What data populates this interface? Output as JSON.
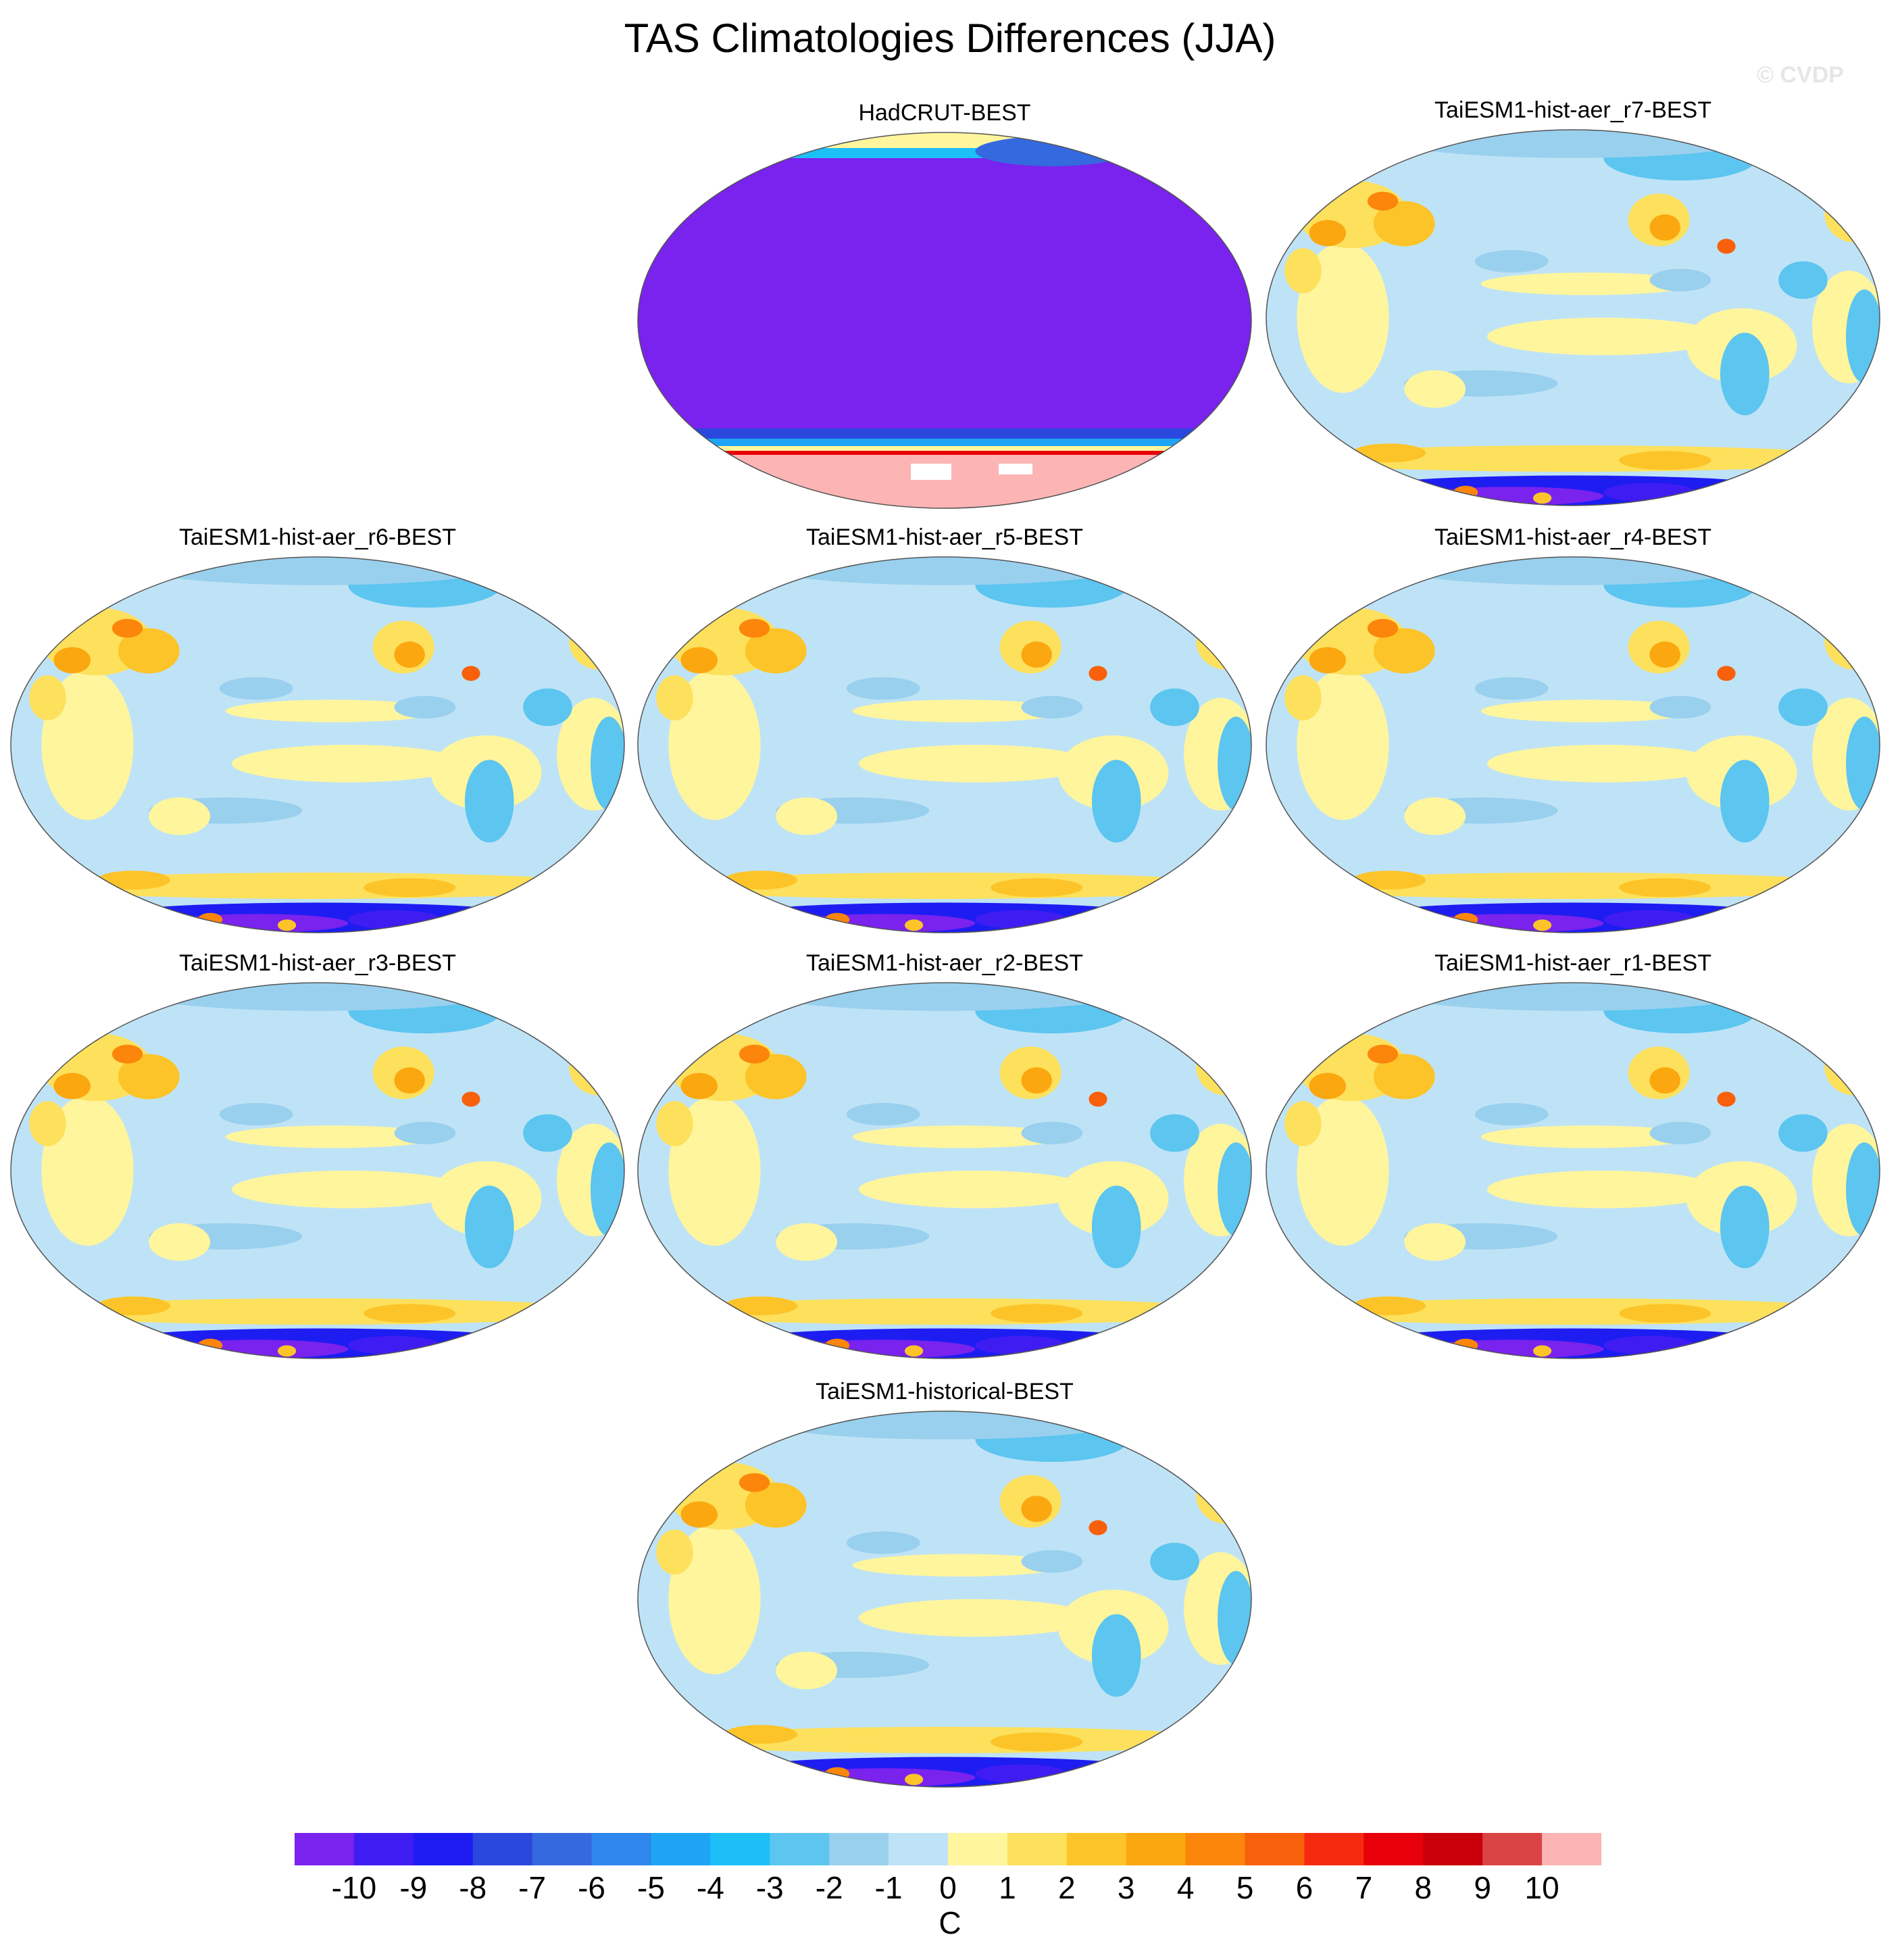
{
  "header": {
    "title": "TAS Climatologies Differences (JJA)",
    "watermark": "© CVDP"
  },
  "chart_data": {
    "type": "heatmap",
    "title": "TAS Climatologies Differences (JJA)",
    "projection": "Robinson global map, Pacific-centered",
    "panels": [
      {
        "title": "HadCRUT-BEST",
        "pattern": "obs"
      },
      {
        "title": "TaiESM1-hist-aer_r7-BEST",
        "pattern": "model"
      },
      {
        "title": "TaiESM1-hist-aer_r6-BEST",
        "pattern": "model"
      },
      {
        "title": "TaiESM1-hist-aer_r5-BEST",
        "pattern": "model"
      },
      {
        "title": "TaiESM1-hist-aer_r4-BEST",
        "pattern": "model"
      },
      {
        "title": "TaiESM1-hist-aer_r3-BEST",
        "pattern": "model"
      },
      {
        "title": "TaiESM1-hist-aer_r2-BEST",
        "pattern": "model"
      },
      {
        "title": "TaiESM1-hist-aer_r1-BEST",
        "pattern": "model"
      },
      {
        "title": "TaiESM1-historical-BEST",
        "pattern": "model"
      }
    ],
    "colorbar": {
      "levels": [
        -10,
        -9,
        -8,
        -7,
        -6,
        -5,
        -4,
        -3,
        -2,
        -1,
        0,
        1,
        2,
        3,
        4,
        5,
        6,
        7,
        8,
        9,
        10
      ],
      "tick_labels": [
        "-10",
        "-9",
        "-8",
        "-7",
        "-6",
        "-5",
        "-4",
        "-3",
        "-2",
        "-1",
        "0",
        "1",
        "2",
        "3",
        "4",
        "5",
        "6",
        "7",
        "8",
        "9",
        "10"
      ],
      "unit": "C",
      "colors": [
        "#7a22ee",
        "#3f1df2",
        "#1d1df2",
        "#2b48de",
        "#3569e0",
        "#2f86ec",
        "#1ea4f5",
        "#1dbff7",
        "#5cc5f0",
        "#99d0ee",
        "#bfe3f6",
        "#fff59d",
        "#fde05c",
        "#fcc428",
        "#fba70f",
        "#fb860b",
        "#f8600c",
        "#f52b0f",
        "#e8000a",
        "#c9000a",
        "#db4444",
        "#fdb4b4"
      ]
    }
  }
}
